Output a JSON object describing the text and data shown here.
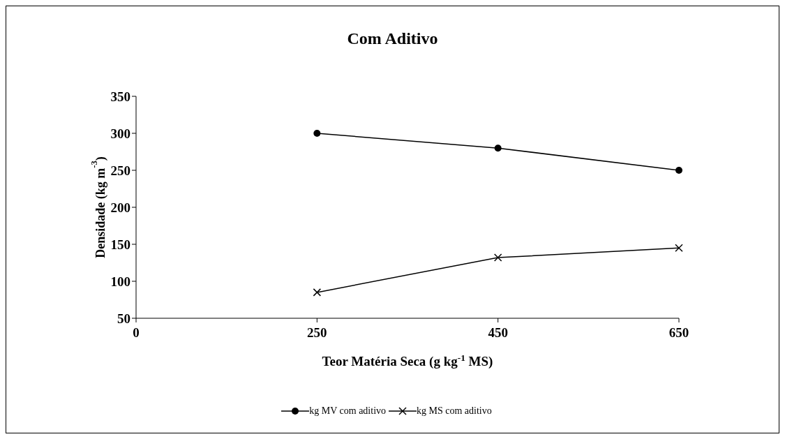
{
  "chart_data": {
    "type": "line",
    "title": "Com Aditivo",
    "xlabel": "Teor Matéria Seca (g kg$^{-1}$ MS)",
    "ylabel": "Densidade (kg m$^{-3}$)",
    "categories": [
      "0",
      "250",
      "450",
      "650"
    ],
    "series": [
      {
        "name": "kg MV com aditivo",
        "color": "#000000",
        "marker": "circle",
        "values": [
          null,
          300,
          280,
          250
        ]
      },
      {
        "name": "kg MS com aditivo",
        "color": "#000000",
        "marker": "cross",
        "values": [
          null,
          85,
          132,
          145
        ]
      }
    ],
    "ylim": [
      50,
      350
    ],
    "yticks": [
      50,
      100,
      150,
      200,
      250,
      300,
      350
    ],
    "grid": false,
    "legend": "bottom",
    "line_style": "solid"
  }
}
